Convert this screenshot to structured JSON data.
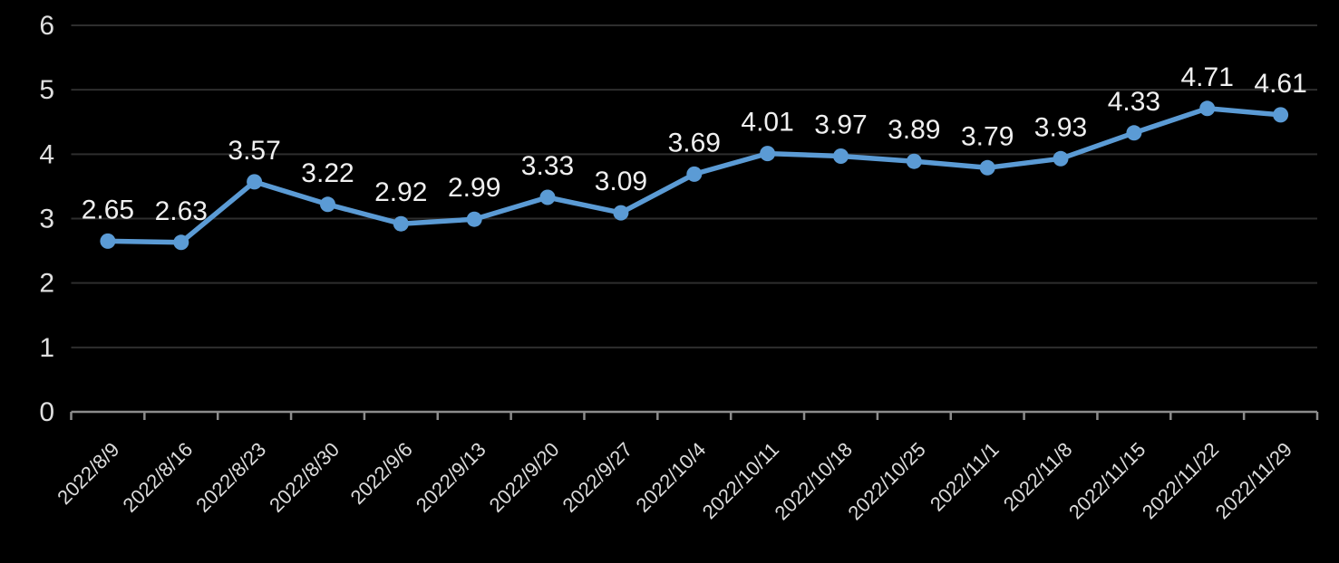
{
  "chart_data": {
    "type": "line",
    "title": "",
    "xlabel": "",
    "ylabel": "",
    "legend_position": "none",
    "grid": true,
    "categories": [
      "2022/8/9",
      "2022/8/16",
      "2022/8/23",
      "2022/8/30",
      "2022/9/6",
      "2022/9/13",
      "2022/9/20",
      "2022/9/27",
      "2022/10/4",
      "2022/10/11",
      "2022/10/18",
      "2022/10/25",
      "2022/11/1",
      "2022/11/8",
      "2022/11/15",
      "2022/11/22",
      "2022/11/29"
    ],
    "values": [
      2.65,
      2.63,
      3.57,
      3.22,
      2.92,
      2.99,
      3.33,
      3.09,
      3.69,
      4.01,
      3.97,
      3.89,
      3.79,
      3.93,
      4.33,
      4.71,
      4.61
    ],
    "data_labels": [
      "2.65",
      "2.63",
      "3.57",
      "3.22",
      "2.92",
      "2.99",
      "3.33",
      "3.09",
      "3.69",
      "4.01",
      "3.97",
      "3.89",
      "3.79",
      "3.93",
      "4.33",
      "4.71",
      "4.61"
    ],
    "ylim": [
      0,
      6
    ],
    "ytick_interval": 1,
    "yticks": [
      "0",
      "1",
      "2",
      "3",
      "4",
      "5",
      "6"
    ],
    "colors": {
      "background": "#000000",
      "series": "#5B9BD5",
      "gridline": "#2E2E2E",
      "axis": "#8C8C8C",
      "data_label": "#F0F0F0",
      "ytick_label": "#DFDFDF",
      "xtick_label": "#DCDCDC"
    },
    "marker": "circle",
    "xtick_rotation": -45
  }
}
